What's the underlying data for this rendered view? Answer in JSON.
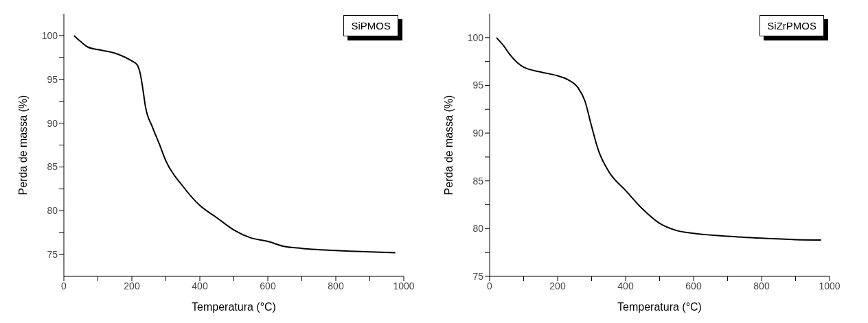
{
  "chart_data": [
    {
      "type": "line",
      "xlabel": "Temperatura (°C)",
      "ylabel": "Perda de massa (%)",
      "annotations": [
        "SiPMOS"
      ],
      "xlim": [
        0,
        1000
      ],
      "xticks": [
        0,
        {
          "value": 100,
          "label": null
        },
        200,
        {
          "value": 300,
          "label": null
        },
        400,
        {
          "value": 500,
          "label": null
        },
        600,
        {
          "value": 700,
          "label": null
        },
        800,
        {
          "value": 900,
          "label": null
        },
        1000
      ],
      "ylim": [
        72.5,
        102.5
      ],
      "yticks": [
        75,
        {
          "value": 77.5,
          "label": null
        },
        80,
        {
          "value": 82.5,
          "label": null
        },
        85,
        {
          "value": 87.5,
          "label": null
        },
        90,
        {
          "value": 92.5,
          "label": null
        },
        95,
        {
          "value": 97.5,
          "label": null
        },
        100
      ],
      "grid": false,
      "legend": false,
      "marker": "none",
      "line_style": "solid",
      "series": [
        {
          "color": "#000000",
          "x": [
            30,
            50,
            70,
            100,
            150,
            200,
            215,
            225,
            232,
            240,
            260,
            280,
            300,
            350,
            400,
            450,
            500,
            550,
            600,
            650,
            700,
            800,
            900,
            975
          ],
          "values": [
            100,
            99.3,
            98.7,
            98.4,
            98.0,
            97.1,
            96.7,
            95.6,
            94.0,
            91.9,
            89.6,
            87.7,
            85.7,
            82.8,
            80.6,
            79.2,
            77.8,
            76.9,
            76.5,
            75.9,
            75.7,
            75.45,
            75.3,
            75.2
          ]
        }
      ]
    },
    {
      "type": "line",
      "xlabel": "Temperatura (°C)",
      "ylabel": "Perda de massa (%)",
      "annotations": [
        "SiZrPMOS"
      ],
      "xlim": [
        0,
        1000
      ],
      "xticks": [
        0,
        {
          "value": 100,
          "label": null
        },
        200,
        {
          "value": 300,
          "label": null
        },
        400,
        {
          "value": 500,
          "label": null
        },
        600,
        {
          "value": 700,
          "label": null
        },
        800,
        {
          "value": 900,
          "label": null
        },
        1000
      ],
      "ylim": [
        75,
        102.5
      ],
      "yticks": [
        75,
        {
          "value": 77.5,
          "label": null
        },
        80,
        {
          "value": 82.5,
          "label": null
        },
        85,
        {
          "value": 87.5,
          "label": null
        },
        90,
        {
          "value": 92.5,
          "label": null
        },
        95,
        {
          "value": 97.5,
          "label": null
        },
        100
      ],
      "grid": false,
      "legend": false,
      "marker": "none",
      "line_style": "solid",
      "series": [
        {
          "color": "#000000",
          "x": [
            20,
            40,
            60,
            100,
            150,
            200,
            230,
            260,
            280,
            300,
            320,
            350,
            400,
            450,
            500,
            550,
            600,
            700,
            800,
            900,
            975
          ],
          "values": [
            100,
            99.2,
            98.2,
            96.9,
            96.4,
            96.0,
            95.6,
            94.75,
            93.4,
            90.7,
            88.2,
            86.0,
            84.0,
            82.05,
            80.55,
            79.8,
            79.5,
            79.2,
            79.0,
            78.85,
            78.8
          ]
        }
      ]
    }
  ]
}
